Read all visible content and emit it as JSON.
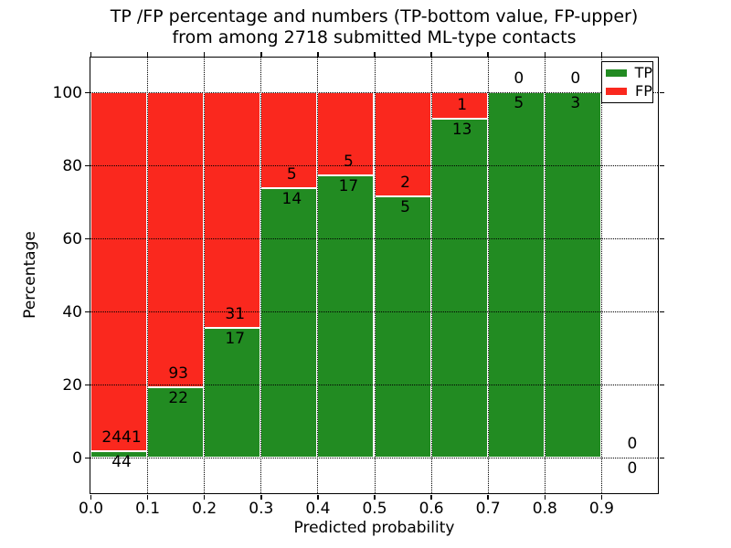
{
  "figure": {
    "title_line1": "TP /FP percentage and numbers (TP-bottom value, FP-upper)",
    "title_line2": "from among 2718 submitted ML-type contacts"
  },
  "chart_data": {
    "type": "bar",
    "stacked": true,
    "normalized_to_percent": true,
    "title": "TP /FP percentage and numbers (TP-bottom value, FP-upper) from among 2718 submitted ML-type contacts",
    "xlabel": "Predicted probability",
    "ylabel": "Percentage",
    "total_contacts": 2718,
    "bin_width": 0.1,
    "bin_starts": [
      0.0,
      0.1,
      0.2,
      0.3,
      0.4,
      0.5,
      0.6,
      0.7,
      0.8,
      0.9
    ],
    "series": [
      {
        "name": "TP",
        "color": "#228B22",
        "counts": [
          44,
          22,
          17,
          14,
          17,
          5,
          13,
          5,
          3,
          0
        ]
      },
      {
        "name": "FP",
        "color": "#FA281E",
        "counts": [
          2441,
          93,
          31,
          5,
          5,
          2,
          1,
          0,
          0,
          0
        ]
      }
    ],
    "tp_percent_by_bin": [
      1.8,
      19.1,
      35.4,
      73.7,
      77.3,
      71.4,
      92.9,
      100.0,
      100.0,
      null
    ],
    "x_tick_labels": [
      "0.0",
      "0.1",
      "0.2",
      "0.3",
      "0.4",
      "0.5",
      "0.6",
      "0.7",
      "0.8",
      "0.9"
    ],
    "y_ticks": [
      0,
      20,
      40,
      60,
      80,
      100
    ],
    "xlim": [
      0.0,
      1.0
    ],
    "ylim": [
      -10,
      110
    ],
    "grid": {
      "style": "dotted",
      "color": "#000000",
      "axes": "both",
      "drawn_over_bars": true
    },
    "bar_edge_color": "#FFFFFF",
    "legend": {
      "position": "upper right",
      "entries": [
        "TP",
        "FP"
      ]
    }
  }
}
